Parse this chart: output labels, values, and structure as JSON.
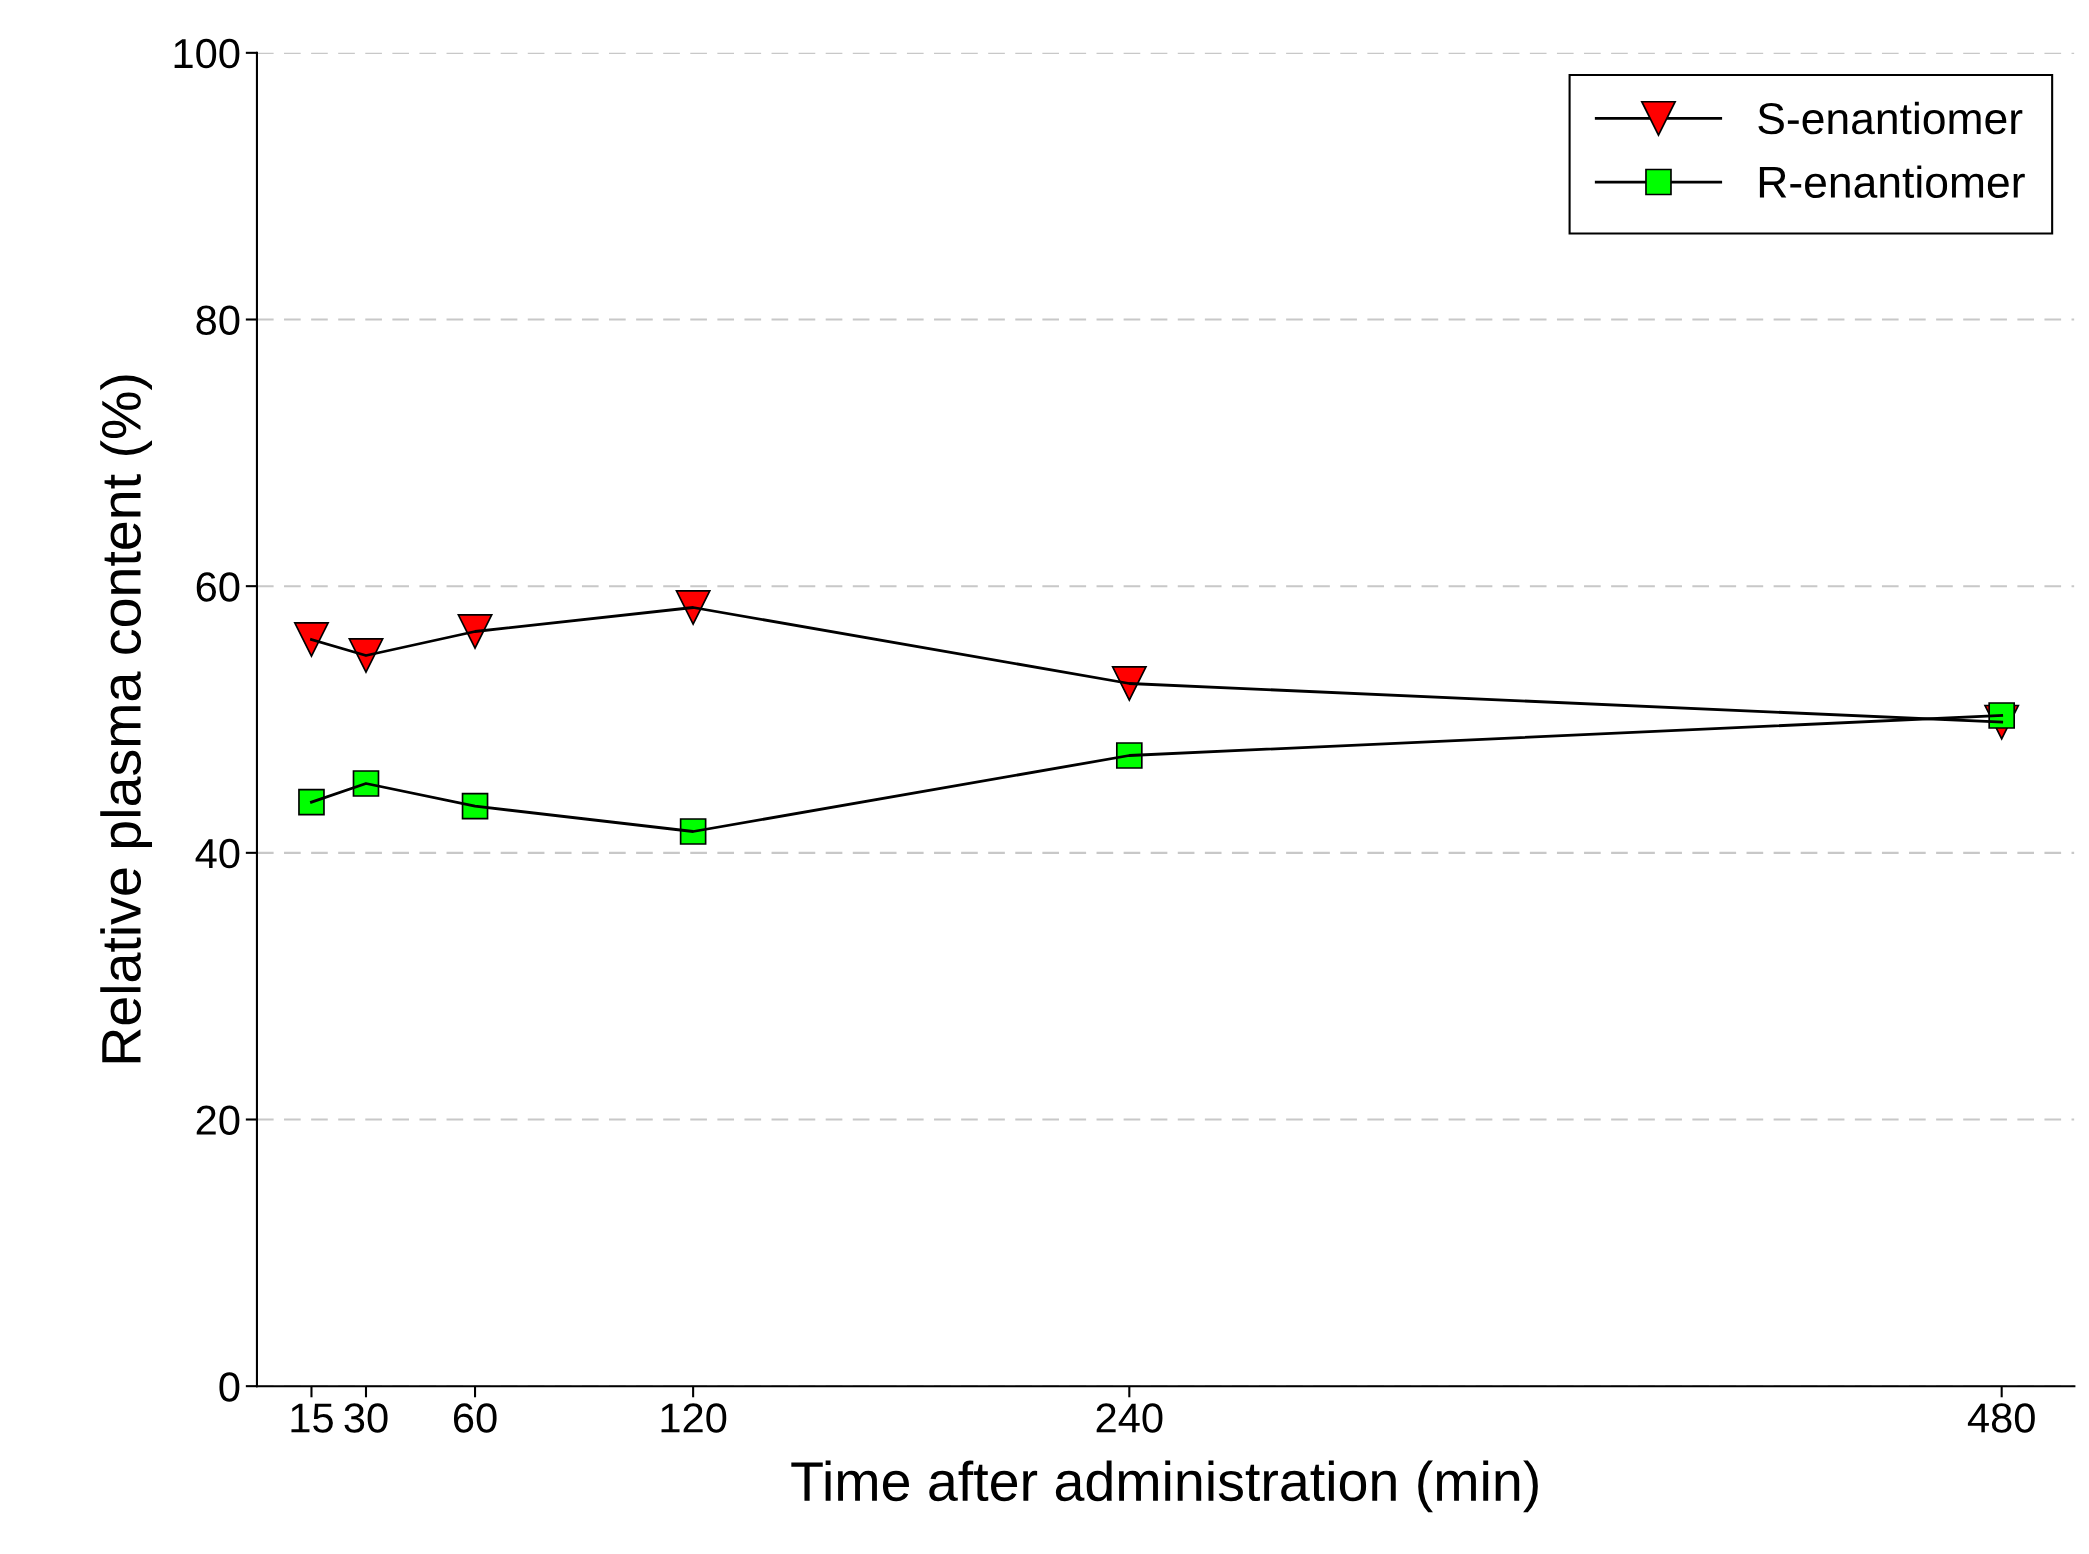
{
  "chart_data": {
    "type": "line",
    "xlabel": "Time after administration (min)",
    "ylabel": "Relative plasma content (%)",
    "x": [
      15,
      30,
      60,
      120,
      240,
      480
    ],
    "series": [
      {
        "name": "S-enantiomer",
        "color": "#ff0000",
        "marker": "triangle",
        "values": [
          56.0,
          54.8,
          56.6,
          58.4,
          52.7,
          49.8
        ]
      },
      {
        "name": "R-enantiomer",
        "color": "#00ff00",
        "marker": "square",
        "values": [
          43.8,
          45.2,
          43.5,
          41.6,
          47.3,
          50.3
        ]
      }
    ],
    "xlim": [
      0,
      500
    ],
    "xticks": [
      15,
      30,
      60,
      120,
      240,
      480
    ],
    "ylim": [
      0,
      100
    ],
    "yticks": [
      0,
      20,
      40,
      60,
      80,
      100
    ],
    "grid": "y",
    "legend": "top right",
    "line_style": "solid"
  }
}
